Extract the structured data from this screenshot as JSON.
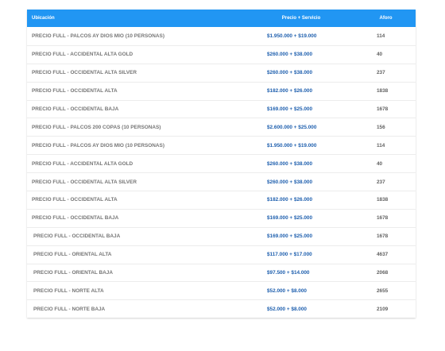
{
  "table": {
    "headers": {
      "location": "Ubicación",
      "price": "Precio + Servicio",
      "capacity": "Aforo"
    },
    "rows": [
      {
        "location": "PRECIO FULL - PALCOS AY DIOS MIO (10 PERSONAS)",
        "price": "$1.950.000 + $19.000",
        "capacity": "114"
      },
      {
        "location": "PRECIO FULL - ACCIDENTAL ALTA GOLD",
        "price": "$260.000 + $38.000",
        "capacity": "40"
      },
      {
        "location": "PRECIO FULL - OCCIDENTAL ALTA SILVER",
        "price": "$260.000 + $38.000",
        "capacity": "237"
      },
      {
        "location": "PRECIO FULL - OCCIDENTAL ALTA",
        "price": "$182.000 + $26.000",
        "capacity": "1838"
      },
      {
        "location": "PRECIO FULL - OCCIDENTAL BAJA",
        "price": "$169.000 + $25.000",
        "capacity": "1678"
      },
      {
        "location": "PRECIO FULL - PALCOS 200 COPAS (10 PERSONAS)",
        "price": "$2.600.000 + $25.000",
        "capacity": "156"
      },
      {
        "location": "PRECIO FULL - PALCOS AY DIOS MIO (10 PERSONAS)",
        "price": "$1.950.000 + $19.000",
        "capacity": "114"
      },
      {
        "location": "PRECIO FULL - ACCIDENTAL ALTA GOLD",
        "price": "$260.000 + $38.000",
        "capacity": "40"
      },
      {
        "location": "PRECIO FULL - OCCIDENTAL ALTA SILVER",
        "price": "$260.000 + $38.000",
        "capacity": "237"
      },
      {
        "location": "PRECIO FULL - OCCIDENTAL ALTA",
        "price": "$182.000 + $26.000",
        "capacity": "1838"
      },
      {
        "location": "PRECIO FULL - OCCIDENTAL BAJA",
        "price": "$169.000 + $25.000",
        "capacity": "1678"
      },
      {
        "location": "PRECIO FULL - OCCIDENTAL BAJA",
        "price": "$169.000 + $25.000",
        "capacity": "1678"
      },
      {
        "location": "PRECIO FULL - ORIENTAL ALTA",
        "price": "$117.000 + $17.000",
        "capacity": "4637"
      },
      {
        "location": "PRECIO FULL - ORIENTAL BAJA",
        "price": "$97.500 + $14.000",
        "capacity": "2068"
      },
      {
        "location": "PRECIO FULL - NORTE ALTA",
        "price": "$52.000 + $8.000",
        "capacity": "2655"
      },
      {
        "location": "PRECIO FULL - NORTE BAJA",
        "price": "$52.000 + $8.000",
        "capacity": "2109"
      }
    ]
  },
  "colors": {
    "header_bg": "#2196f3",
    "header_text": "#ffffff",
    "location_text": "#757575",
    "price_text": "#1e5fae",
    "capacity_text": "#616161"
  }
}
